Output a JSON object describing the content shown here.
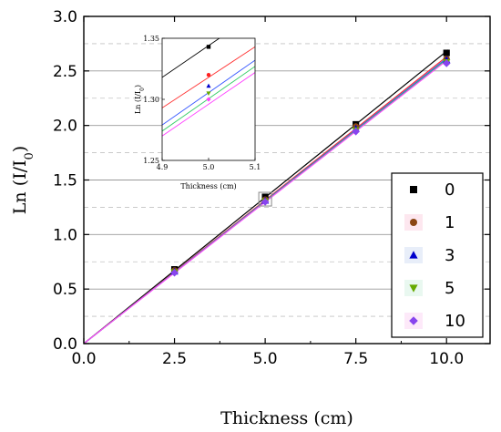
{
  "chart_data": {
    "type": "scatter",
    "xlabel": "Thickness (cm)",
    "ylabel_main": "Ln (I/I",
    "ylabel_sub": "0",
    "ylabel_close": ")",
    "xlim": [
      0,
      11.2
    ],
    "ylim": [
      0,
      3.0
    ],
    "x_ticks": [
      0,
      2.5,
      5,
      7.5,
      10
    ],
    "x_tick_labels": [
      "0.0",
      "2.5",
      "5.0",
      "7.5",
      "10.0"
    ],
    "y_ticks": [
      0,
      0.5,
      1,
      1.5,
      2,
      2.5,
      3
    ],
    "y_tick_labels": [
      "0.0",
      "0.5",
      "1.0",
      "1.5",
      "2.0",
      "2.5",
      "3.0"
    ],
    "grid": "horizontal major solid, minor dashed",
    "legend_position": "bottom-right",
    "series": [
      {
        "name": "0",
        "color": "#000000",
        "marker": "square",
        "x": [
          2.5,
          5,
          7.5,
          10
        ],
        "y": [
          0.68,
          1.345,
          2.01,
          2.665
        ],
        "slope": 0.268
      },
      {
        "name": "1",
        "color": "#8B4513",
        "marker": "circle",
        "x": [
          2.5,
          5,
          7.5,
          10
        ],
        "y": [
          0.67,
          1.32,
          1.99,
          2.61
        ],
        "slope": 0.263
      },
      {
        "name": "3",
        "color": "#0000CC",
        "marker": "triangle-up",
        "x": [
          2.5,
          5,
          7.5,
          10
        ],
        "y": [
          0.66,
          1.31,
          1.97,
          2.6
        ],
        "slope": 0.2615
      },
      {
        "name": "5",
        "color": "#66AA00",
        "marker": "triangle-down",
        "x": [
          2.5,
          5,
          7.5,
          10
        ],
        "y": [
          0.655,
          1.305,
          1.955,
          2.58
        ],
        "slope": 0.2605
      },
      {
        "name": "10",
        "color": "#8844EE",
        "marker": "diamond",
        "x": [
          2.5,
          5,
          7.5,
          10
        ],
        "y": [
          0.65,
          1.3,
          1.945,
          2.57
        ],
        "slope": 0.2595
      }
    ],
    "fit_line_colors": [
      "#000000",
      "#FF3030",
      "#3355FF",
      "#33CC66",
      "#FF44FF"
    ],
    "inset": {
      "xlabel": "Thickness (cm)",
      "ylabel": "Ln (I/I",
      "ylabel_sub": "0",
      "ylabel_close": ")",
      "xlim": [
        4.9,
        5.1
      ],
      "ylim": [
        1.25,
        1.35
      ],
      "x_tick_labels": [
        "4.9",
        "5.0",
        "5.1"
      ],
      "y_tick_labels": [
        "1.25",
        "1.30",
        "1.35"
      ],
      "points": [
        {
          "x": 5.0,
          "y": 1.343,
          "color": "#000000",
          "marker": "square"
        },
        {
          "x": 5.0,
          "y": 1.32,
          "color": "#FF2020",
          "marker": "circle"
        },
        {
          "x": 5.0,
          "y": 1.311,
          "color": "#0000CC",
          "marker": "triangle-up"
        },
        {
          "x": 5.0,
          "y": 1.305,
          "color": "#66AA00",
          "marker": "triangle-down"
        },
        {
          "x": 5.0,
          "y": 1.3,
          "color": "#FF44FF",
          "marker": "diamond"
        }
      ],
      "lines": [
        {
          "color": "#000000",
          "y_at_4_9": 1.318,
          "y_at_5_1": 1.37
        },
        {
          "color": "#FF3030",
          "y_at_4_9": 1.293,
          "y_at_5_1": 1.343
        },
        {
          "color": "#3355FF",
          "y_at_4_9": 1.279,
          "y_at_5_1": 1.332
        },
        {
          "color": "#33CC66",
          "y_at_4_9": 1.274,
          "y_at_5_1": 1.327
        },
        {
          "color": "#FF44FF",
          "y_at_4_9": 1.27,
          "y_at_5_1": 1.322
        }
      ]
    }
  }
}
